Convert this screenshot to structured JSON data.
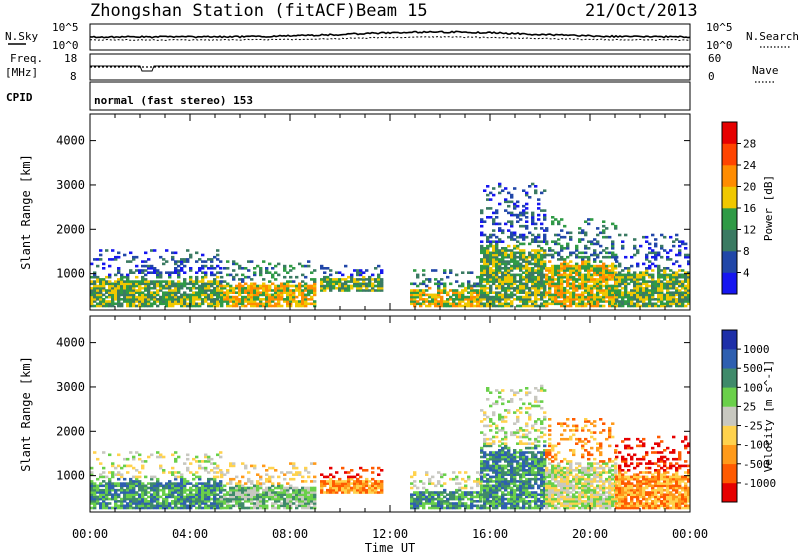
{
  "header": {
    "station": "Zhongshan Station (fitACF)",
    "beam": "Beam 15",
    "date": "21/Oct/2013"
  },
  "top_panels": {
    "nsky_label": "N.Sky",
    "nsky_ticks": [
      "10^5",
      "10^0"
    ],
    "nsearch_label": "N.Search",
    "nsearch_ticks": [
      "10^5",
      "10^0"
    ],
    "freq_label": "Freq.",
    "freq_unit": "[MHz]",
    "freq_ticks": [
      "18",
      "8"
    ],
    "nave_label": "Nave",
    "nave_ticks": [
      "60",
      "0"
    ],
    "cpid_label": "CPID",
    "cpid_text": "normal (fast stereo) 153"
  },
  "colors": {
    "power": [
      "#1616f0",
      "#2147a8",
      "#3a7a62",
      "#2f9a45",
      "#f0c800",
      "#ff8c00",
      "#ff4400",
      "#e60000"
    ],
    "velocity": [
      "#e60000",
      "#ff5a00",
      "#ff9a1a",
      "#ffd24d",
      "#c8c8c0",
      "#6ad04a",
      "#3f8a6a",
      "#2e5fb0",
      "#1e2fa8"
    ]
  },
  "chart_data": [
    {
      "type": "heatmap",
      "name": "power",
      "ylabel": "Slant Range [km]",
      "xlabel": "",
      "xticks": [
        "00:00",
        "04:00",
        "08:00",
        "12:00",
        "16:00",
        "20:00",
        "00:00"
      ],
      "xlim": [
        0,
        24
      ],
      "yticks": [
        "1000",
        "2000",
        "3000",
        "4000"
      ],
      "ylim": [
        180,
        4600
      ],
      "colorbar_label": "Power [dB]",
      "colorbar_ticks": [
        "4",
        "8",
        "12",
        "16",
        "20",
        "24",
        "28"
      ],
      "scatter_regions": [
        {
          "t0": 0.0,
          "t1": 5.2,
          "r0": 250,
          "r1": 1550,
          "level": 3
        },
        {
          "t0": 5.2,
          "t1": 9.0,
          "r0": 250,
          "r1": 1300,
          "level": 4
        },
        {
          "t0": 9.2,
          "t1": 11.6,
          "r0": 600,
          "r1": 1200,
          "level": 3
        },
        {
          "t0": 12.8,
          "t1": 15.6,
          "r0": 250,
          "r1": 1100,
          "level": 4
        },
        {
          "t0": 15.6,
          "t1": 18.2,
          "r0": 250,
          "r1": 3050,
          "level": 3
        },
        {
          "t0": 18.2,
          "t1": 21.0,
          "r0": 250,
          "r1": 2300,
          "level": 4
        },
        {
          "t0": 21.0,
          "t1": 24.0,
          "r0": 250,
          "r1": 1900,
          "level": 3
        }
      ]
    },
    {
      "type": "heatmap",
      "name": "velocity",
      "ylabel": "Slant Range [km]",
      "xlabel": "Time UT",
      "xticks": [
        "00:00",
        "04:00",
        "08:00",
        "12:00",
        "16:00",
        "20:00",
        "00:00"
      ],
      "xlim": [
        0,
        24
      ],
      "yticks": [
        "1000",
        "2000",
        "3000",
        "4000"
      ],
      "ylim": [
        180,
        4600
      ],
      "colorbar_label": "Velocity [m s^-1]",
      "colorbar_ticks": [
        "1000",
        "500",
        "100",
        "25",
        "-25",
        "-100",
        "-500",
        "-1000"
      ],
      "scatter_regions": [
        {
          "t0": 0.0,
          "t1": 5.2,
          "r0": 250,
          "r1": 1550,
          "level": 6
        },
        {
          "t0": 5.2,
          "t1": 9.0,
          "r0": 250,
          "r1": 1300,
          "level": 5
        },
        {
          "t0": 9.2,
          "t1": 11.6,
          "r0": 600,
          "r1": 1200,
          "level": 2
        },
        {
          "t0": 12.8,
          "t1": 15.6,
          "r0": 250,
          "r1": 1100,
          "level": 6
        },
        {
          "t0": 15.6,
          "t1": 18.2,
          "r0": 250,
          "r1": 3050,
          "level": 6
        },
        {
          "t0": 18.2,
          "t1": 21.0,
          "r0": 250,
          "r1": 2300,
          "level": 4
        },
        {
          "t0": 21.0,
          "t1": 24.0,
          "r0": 250,
          "r1": 1900,
          "level": 2
        }
      ]
    }
  ]
}
